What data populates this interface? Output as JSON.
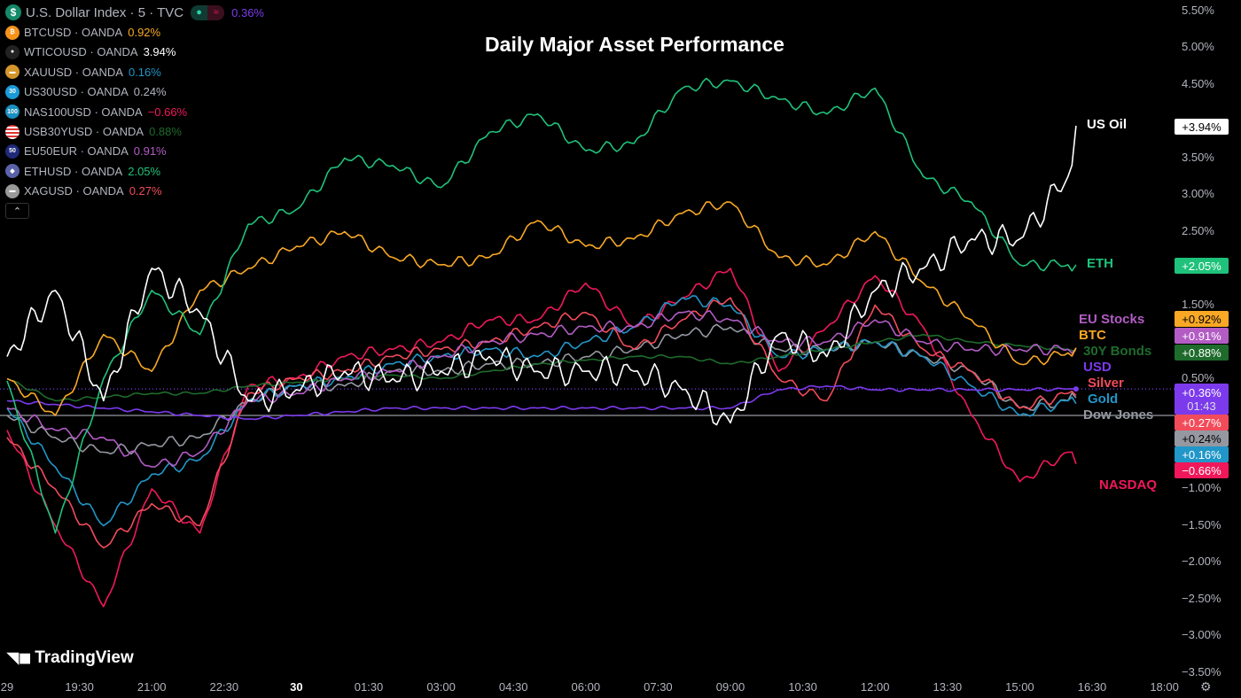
{
  "legend": {
    "main": {
      "name": "U.S. Dollar Index · 5 · TVC",
      "value": "0.36%",
      "color": "#7c3aed",
      "icon": "dollar-icon"
    },
    "items": [
      {
        "name": "BTCUSD · OANDA",
        "value": "0.92%",
        "color": "#f7931a",
        "icon": "bitcoin-icon"
      },
      {
        "name": "WTICOUSD · OANDA",
        "value": "3.94%",
        "color": "#ffffff",
        "icon": "oil-drop-icon"
      },
      {
        "name": "XAUUSD · OANDA",
        "value": "0.16%",
        "color": "#2196c8",
        "icon": "gold-bar-icon"
      },
      {
        "name": "US30USD · OANDA",
        "value": "0.24%",
        "color": "#b2b5be",
        "icon": "us30-icon"
      },
      {
        "name": "NAS100USD · OANDA",
        "value": "−0.66%",
        "color": "#f0185a",
        "icon": "nas100-icon"
      },
      {
        "name": "USB30YUSD · OANDA",
        "value": "0.88%",
        "color": "#1e6b2c",
        "icon": "us-flag-icon"
      },
      {
        "name": "EU50EUR · OANDA",
        "value": "0.91%",
        "color": "#b25cc4",
        "icon": "eu50-icon"
      },
      {
        "name": "ETHUSD · OANDA",
        "value": "2.05%",
        "color": "#1fc27a",
        "icon": "ethereum-icon"
      },
      {
        "name": "XAGUSD · OANDA",
        "value": "0.27%",
        "color": "#f24b5a",
        "icon": "silver-bar-icon"
      }
    ],
    "icon_text": {
      "dollar": "$",
      "bitcoin": "₿",
      "oil": "●",
      "us30": "30",
      "nas": "100",
      "eu50": "50",
      "eth": "◆",
      "bar": "▬"
    },
    "collapse_icon": "chevron-up-icon",
    "collapse_glyph": "⌃"
  },
  "brand": "TradingView",
  "chart_data": {
    "type": "line",
    "title": "Daily Major Asset Performance",
    "x": [
      "18:00",
      "19:00",
      "20:00",
      "21:00",
      "22:00",
      "23:00",
      "00:00",
      "01:00",
      "02:00",
      "03:00",
      "04:00",
      "05:00",
      "06:00",
      "07:00",
      "08:00",
      "09:00",
      "10:00",
      "11:00",
      "12:00",
      "13:00",
      "14:00",
      "15:00",
      "16:00",
      "16:10"
    ],
    "ylim": [
      -3.5,
      5.5
    ],
    "y_ticks": [
      "5.50%",
      "5.00%",
      "4.50%",
      "3.50%",
      "3.00%",
      "2.50%",
      "1.50%",
      "0.50%",
      "−1.00%",
      "−1.50%",
      "−2.00%",
      "−2.50%",
      "−3.00%",
      "−3.50%"
    ],
    "y_tick_values": [
      5.5,
      5.0,
      4.5,
      3.5,
      3.0,
      2.5,
      1.5,
      0.5,
      -1.0,
      -1.5,
      -2.0,
      -2.5,
      -3.0,
      -3.5
    ],
    "x_ticks": [
      "29",
      "19:30",
      "21:00",
      "22:30",
      "30",
      "01:30",
      "03:00",
      "04:30",
      "06:00",
      "07:30",
      "09:00",
      "10:30",
      "12:00",
      "13:30",
      "15:00",
      "16:30",
      "18:00"
    ],
    "x_tick_times": [
      "18:00",
      "19:30",
      "21:00",
      "22:30",
      "00:00",
      "01:30",
      "03:00",
      "04:30",
      "06:00",
      "07:30",
      "09:00",
      "10:30",
      "12:00",
      "13:30",
      "15:00",
      "16:30",
      "18:00"
    ],
    "series": [
      {
        "name": "US Oil",
        "color": "#ffffff",
        "last": "+3.94%",
        "values": [
          0.8,
          1.7,
          0.2,
          2.0,
          1.4,
          0.2,
          0.35,
          0.6,
          0.5,
          0.6,
          0.8,
          0.6,
          0.6,
          0.6,
          0.35,
          -0.1,
          1.1,
          0.8,
          1.7,
          2.0,
          2.4,
          2.4,
          3.25,
          3.94
        ]
      },
      {
        "name": "ETH",
        "color": "#1fc27a",
        "last": "+2.05%",
        "values": [
          0.47,
          -1.6,
          0.5,
          1.7,
          1.1,
          2.6,
          2.8,
          3.5,
          3.4,
          3.1,
          3.85,
          4.1,
          3.6,
          3.7,
          4.45,
          4.55,
          4.3,
          4.1,
          4.45,
          3.25,
          2.9,
          2.05,
          2.05,
          2.05
        ]
      },
      {
        "name": "BTC",
        "color": "#f9a825",
        "last": "+0.92%",
        "values": [
          0.5,
          0.0,
          1.1,
          0.6,
          1.7,
          2.0,
          2.3,
          2.5,
          2.15,
          2.05,
          2.15,
          2.65,
          2.3,
          2.4,
          2.75,
          2.9,
          2.15,
          2.05,
          2.5,
          1.8,
          1.3,
          0.7,
          0.85,
          0.92
        ]
      },
      {
        "name": "EU Stocks",
        "color": "#b25cc4",
        "last": "+0.91%",
        "values": [
          0.1,
          -0.2,
          -0.3,
          -0.7,
          -0.5,
          0.2,
          0.3,
          0.5,
          0.6,
          0.8,
          1.0,
          1.1,
          1.2,
          1.2,
          1.4,
          1.3,
          1.0,
          1.0,
          1.3,
          1.0,
          0.9,
          0.9,
          0.9,
          0.91
        ]
      },
      {
        "name": "30Y Bonds",
        "color": "#1e6b2c",
        "last": "+0.88%",
        "values": [
          0.5,
          0.2,
          0.25,
          0.3,
          0.3,
          0.4,
          0.45,
          0.5,
          0.55,
          0.5,
          0.6,
          0.7,
          0.75,
          0.8,
          0.8,
          0.7,
          0.8,
          0.9,
          1.0,
          1.1,
          1.0,
          0.95,
          0.9,
          0.88
        ]
      },
      {
        "name": "USD",
        "color": "#7c3aed",
        "last": "+0.36%",
        "countdown": "01:43",
        "values": [
          0.2,
          0.15,
          0.1,
          0.05,
          0.0,
          -0.05,
          0.0,
          0.05,
          0.1,
          0.1,
          0.1,
          0.1,
          0.1,
          0.1,
          0.1,
          0.1,
          0.35,
          0.4,
          0.35,
          0.35,
          0.35,
          0.35,
          0.36,
          0.36
        ]
      },
      {
        "name": "Silver",
        "color": "#f24b5a",
        "last": "+0.27%",
        "values": [
          -0.3,
          -1.0,
          -1.8,
          -1.2,
          -1.5,
          0.3,
          0.5,
          0.6,
          0.8,
          0.9,
          1.0,
          1.2,
          1.4,
          0.9,
          1.3,
          1.6,
          0.5,
          0.2,
          1.5,
          0.9,
          0.6,
          0.1,
          0.3,
          0.27
        ]
      },
      {
        "name": "Gold",
        "color": "#2196c8",
        "last": "+0.16%",
        "values": [
          0.1,
          -0.7,
          -1.5,
          -0.8,
          -0.6,
          0.2,
          0.4,
          0.5,
          0.7,
          0.8,
          0.9,
          0.8,
          1.0,
          1.2,
          1.6,
          1.5,
          0.8,
          0.9,
          1.0,
          0.8,
          0.4,
          0.0,
          0.2,
          0.16
        ]
      },
      {
        "name": "Dow Jones",
        "color": "#9598a1",
        "last": "+0.24%",
        "values": [
          0.0,
          -0.3,
          -0.5,
          -0.4,
          -0.3,
          0.2,
          0.4,
          0.4,
          0.6,
          0.6,
          0.7,
          0.7,
          0.8,
          0.9,
          1.1,
          1.2,
          0.9,
          0.9,
          1.0,
          0.8,
          0.6,
          0.1,
          0.2,
          0.24
        ]
      },
      {
        "name": "NASDAQ",
        "color": "#f0185a",
        "last": "−0.66%",
        "values": [
          -0.2,
          -1.5,
          -2.6,
          -1.0,
          -1.6,
          0.4,
          0.5,
          0.8,
          0.9,
          1.0,
          1.3,
          1.3,
          1.8,
          1.2,
          1.6,
          2.0,
          0.6,
          1.2,
          1.9,
          1.2,
          0.0,
          -0.9,
          -0.5,
          -0.66
        ]
      }
    ]
  },
  "settings_icon": "gear-icon"
}
